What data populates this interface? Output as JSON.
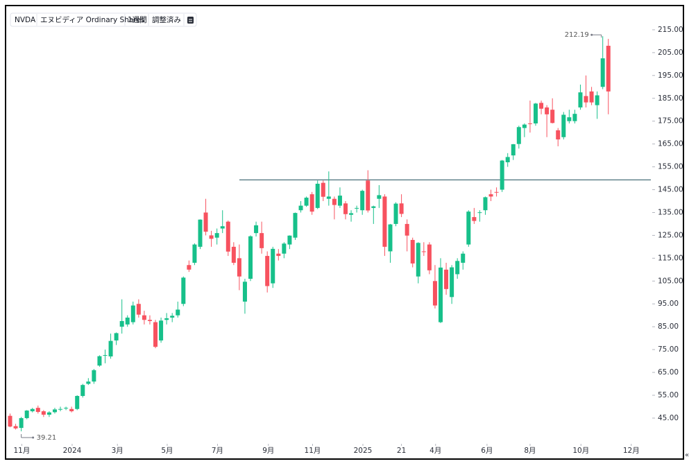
{
  "chart_data": {
    "type": "candlestick",
    "title": "NVDA",
    "subtitle": "エヌビディア Ordinary Shares",
    "interval": "1週間",
    "adjustment": "調整済み",
    "max_label": "212.19",
    "min_label": "39.21",
    "up_color": "#17c08a",
    "down_color": "#f7525f",
    "horizontal_line": {
      "value": 149.3,
      "color": "#1f4e5a"
    },
    "open": [
      46,
      41.5,
      40.7,
      45,
      48,
      49.5,
      48,
      46.5,
      47.6,
      49,
      49.3,
      49,
      49,
      54.7,
      60,
      61,
      68,
      72.4,
      72,
      79,
      85,
      86,
      87,
      95,
      90,
      88,
      87,
      79,
      88,
      89,
      90,
      95,
      112,
      113,
      120,
      135,
      125,
      124,
      128,
      131,
      120,
      115,
      96,
      106,
      126,
      126,
      116,
      104,
      117,
      117,
      121,
      124,
      136,
      138,
      143,
      137,
      148,
      141,
      141,
      138,
      139,
      134,
      137,
      136,
      149,
      137,
      141,
      142,
      118,
      130,
      139,
      130,
      123,
      107,
      118,
      121,
      105,
      87,
      110,
      98,
      108,
      113,
      121,
      133,
      135,
      136,
      143,
      144,
      145,
      157,
      160,
      165,
      172,
      174,
      174,
      183,
      181,
      180,
      171,
      168,
      175,
      175,
      181,
      186,
      188,
      182,
      190,
      208
    ],
    "high": [
      47,
      42.5,
      45.5,
      48.5,
      49.5,
      50.5,
      48.5,
      48,
      49.5,
      50,
      50,
      50,
      55,
      60,
      62.5,
      66.5,
      72.5,
      75,
      82,
      82.5,
      97,
      90,
      96,
      97,
      92,
      90,
      88,
      89,
      91,
      91,
      96,
      107,
      114,
      121.5,
      132,
      141,
      127,
      128,
      136,
      131.5,
      122,
      121,
      106,
      125,
      131,
      131,
      118,
      120,
      119,
      122,
      125,
      135,
      140,
      142,
      144,
      149,
      149,
      153,
      142,
      146,
      140,
      136,
      138,
      145,
      153.5,
      138,
      147,
      143,
      130,
      139.5,
      143,
      132,
      124,
      122,
      122,
      122,
      112,
      115,
      113,
      112,
      115,
      118,
      136,
      137,
      136,
      142,
      145,
      146,
      158,
      161,
      165,
      173,
      174,
      184,
      183,
      184,
      182,
      185,
      172,
      179,
      180,
      180,
      191,
      195,
      190,
      188,
      212.19,
      211
    ],
    "low": [
      41,
      40,
      39.21,
      44.5,
      47.5,
      47,
      45.5,
      45.5,
      47,
      48,
      48.5,
      47.5,
      48.5,
      54,
      59.5,
      60,
      67.5,
      69,
      71,
      77,
      82,
      85,
      86,
      89,
      86,
      86,
      75.6,
      78,
      86,
      87,
      89,
      94,
      109,
      112,
      119,
      125,
      120,
      121,
      126,
      116,
      112,
      101,
      90.7,
      105,
      124.5,
      117,
      100,
      102,
      114,
      115,
      119,
      123,
      135,
      137.5,
      134,
      136.5,
      140,
      138,
      132,
      137,
      132,
      131,
      135,
      134,
      135,
      130,
      137,
      116,
      113,
      129,
      133,
      118,
      111,
      104,
      116,
      108,
      93,
      86.6,
      99,
      95,
      106,
      110,
      120,
      130,
      131,
      134,
      140,
      142,
      144,
      155,
      158,
      163,
      168,
      170,
      173,
      178,
      168,
      174,
      164,
      167,
      174,
      174,
      180,
      181,
      182,
      176,
      189,
      178
    ],
    "close": [
      41.3,
      40.5,
      45,
      48.3,
      49,
      47.7,
      46.5,
      47.5,
      48.8,
      49,
      49.5,
      48,
      54.7,
      59.5,
      61,
      66,
      72.1,
      72.6,
      78.8,
      82.2,
      87.5,
      89,
      94.3,
      90.3,
      88,
      87.5,
      76.2,
      87.7,
      88.7,
      89.8,
      92.5,
      106.5,
      110,
      121,
      131.9,
      126.6,
      123.5,
      126,
      129,
      117.9,
      113,
      107,
      104.7,
      124.6,
      129.4,
      119.4,
      102.8,
      119.1,
      116,
      121.4,
      124.9,
      134.8,
      138,
      141.5,
      135.4,
      147.6,
      141.9,
      142,
      138.3,
      142.4,
      134.3,
      134.7,
      137,
      144.5,
      135.9,
      137.7,
      142.6,
      120,
      129.8,
      138.9,
      134.4,
      124.9,
      112.7,
      121.7,
      117.7,
      109.7,
      94.3,
      110.9,
      101.5,
      111,
      113.8,
      117,
      135.4,
      131.3,
      135.1,
      141.7,
      142,
      143.85,
      157.75,
      159.3,
      164.9,
      172.4,
      173.5,
      173.7,
      182.7,
      180.45,
      177.99,
      174.2,
      167,
      177.8,
      176.7,
      178.2,
      187.6,
      183.2,
      183.2,
      186.3,
      202.5,
      188
    ],
    "xlim": [
      -1.8,
      114.6
    ],
    "xticks": [
      {
        "value": 2.1,
        "label": "11月"
      },
      {
        "value": 11.1,
        "label": "2024"
      },
      {
        "value": 19.2,
        "label": "3月"
      },
      {
        "value": 28.1,
        "label": "5月"
      },
      {
        "value": 37.1,
        "label": "7月"
      },
      {
        "value": 46.2,
        "label": "9月"
      },
      {
        "value": 54.1,
        "label": "11月"
      },
      {
        "value": 63.1,
        "label": "2025"
      },
      {
        "value": 70,
        "label": "21"
      },
      {
        "value": 76.1,
        "label": "4月"
      },
      {
        "value": 85.3,
        "label": "6月"
      },
      {
        "value": 93,
        "label": "8月"
      },
      {
        "value": 102.1,
        "label": "10月"
      },
      {
        "value": 111.1,
        "label": "12月"
      }
    ],
    "ylim": [
      38,
      225
    ],
    "yticks": [
      {
        "value": 45,
        "label": "45.00"
      },
      {
        "value": 55,
        "label": "55.00"
      },
      {
        "value": 65,
        "label": "65.00"
      },
      {
        "value": 75,
        "label": "75.00"
      },
      {
        "value": 85,
        "label": "85.00"
      },
      {
        "value": 95,
        "label": "95.00"
      },
      {
        "value": 105,
        "label": "105.00"
      },
      {
        "value": 115,
        "label": "115.00"
      },
      {
        "value": 125,
        "label": "125.00"
      },
      {
        "value": 135,
        "label": "135.00"
      },
      {
        "value": 145,
        "label": "145.00"
      },
      {
        "value": 155,
        "label": "155.00"
      },
      {
        "value": 165,
        "label": "165.00"
      },
      {
        "value": 175,
        "label": "175.00"
      },
      {
        "value": 185,
        "label": "185.00"
      },
      {
        "value": 195,
        "label": "195.00"
      },
      {
        "value": 205,
        "label": "205.00"
      },
      {
        "value": 215,
        "label": "215.00"
      }
    ]
  }
}
